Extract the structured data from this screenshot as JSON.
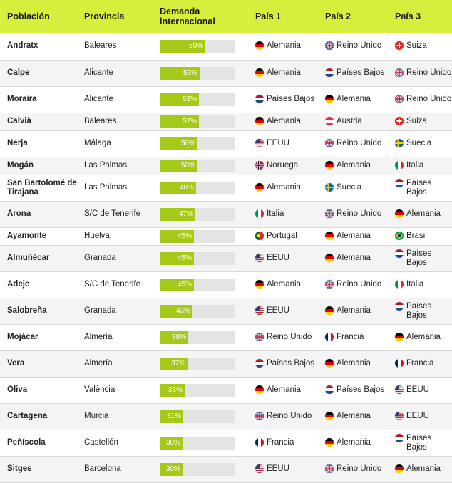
{
  "headers": {
    "poblacion": "Población",
    "provincia": "Provincia",
    "demanda_1": "Demanda",
    "demanda_2": "internacional",
    "pais1": "País 1",
    "pais2": "País 2",
    "pais3": "País 3"
  },
  "colors": {
    "header_bg": "#d7ef3c",
    "bar_fill": "#a5c918",
    "bar_track": "#e4e4e4",
    "row_alt": "#f4f4f4"
  },
  "chart_data": {
    "type": "table",
    "columns": [
      "Población",
      "Provincia",
      "Demanda internacional",
      "País 1",
      "País 2",
      "País 3"
    ],
    "rows": [
      {
        "poblacion": "Andratx",
        "provincia": "Baleares",
        "demanda": 60,
        "demanda_label": "60%",
        "p1": {
          "name": "Alemania",
          "flag": "germany-flag"
        },
        "p2": {
          "name": "Reino Unido",
          "flag": "uk-flag"
        },
        "p3": {
          "name": "Suiza",
          "flag": "switzerland-flag"
        }
      },
      {
        "poblacion": "Calpe",
        "provincia": "Alicante",
        "demanda": 53,
        "demanda_label": "53%",
        "p1": {
          "name": "Alemania",
          "flag": "germany-flag"
        },
        "p2": {
          "name": "Países Bajos",
          "flag": "netherlands-flag"
        },
        "p3": {
          "name": "Reino Unido",
          "flag": "uk-flag"
        }
      },
      {
        "poblacion": "Moraira",
        "provincia": "Alicante",
        "demanda": 52,
        "demanda_label": "52%",
        "p1": {
          "name": "Países Bajos",
          "flag": "netherlands-flag"
        },
        "p2": {
          "name": "Alemania",
          "flag": "germany-flag"
        },
        "p3": {
          "name": "Reino Unido",
          "flag": "uk-flag"
        }
      },
      {
        "poblacion": "Calvià",
        "provincia": "Baleares",
        "demanda": 52,
        "demanda_label": "52%",
        "p1": {
          "name": "Alemania",
          "flag": "germany-flag"
        },
        "p2": {
          "name": "Austria",
          "flag": "austria-flag"
        },
        "p3": {
          "name": "Suiza",
          "flag": "switzerland-flag"
        }
      },
      {
        "poblacion": "Nerja",
        "provincia": "Málaga",
        "demanda": 50,
        "demanda_label": "50%",
        "p1": {
          "name": "EEUU",
          "flag": "usa-flag"
        },
        "p2": {
          "name": "Reino Unido",
          "flag": "uk-flag"
        },
        "p3": {
          "name": "Suecia",
          "flag": "sweden-flag"
        }
      },
      {
        "poblacion": "Mogán",
        "provincia": "Las Palmas",
        "demanda": 50,
        "demanda_label": "50%",
        "p1": {
          "name": "Noruega",
          "flag": "norway-flag"
        },
        "p2": {
          "name": "Alemania",
          "flag": "germany-flag"
        },
        "p3": {
          "name": "Italia",
          "flag": "italy-flag"
        }
      },
      {
        "poblacion": "San Bartolomé de Tirajana",
        "provincia": "Las Palmas",
        "demanda": 48,
        "demanda_label": "48%",
        "p1": {
          "name": "Alemania",
          "flag": "germany-flag"
        },
        "p2": {
          "name": "Suecia",
          "flag": "sweden-flag"
        },
        "p3": {
          "name": "Países Bajos",
          "flag": "netherlands-flag"
        }
      },
      {
        "poblacion": "Arona",
        "provincia": "S/C de Tenerife",
        "demanda": 47,
        "demanda_label": "47%",
        "p1": {
          "name": "Italia",
          "flag": "italy-flag"
        },
        "p2": {
          "name": "Reino Unido",
          "flag": "uk-flag"
        },
        "p3": {
          "name": "Alemania",
          "flag": "germany-flag"
        }
      },
      {
        "poblacion": "Ayamonte",
        "provincia": "Huelva",
        "demanda": 45,
        "demanda_label": "45%",
        "p1": {
          "name": "Portugal",
          "flag": "portugal-flag"
        },
        "p2": {
          "name": "Alemania",
          "flag": "germany-flag"
        },
        "p3": {
          "name": "Brasil",
          "flag": "brazil-flag"
        }
      },
      {
        "poblacion": "Almuñécar",
        "provincia": "Granada",
        "demanda": 45,
        "demanda_label": "45%",
        "p1": {
          "name": "EEUU",
          "flag": "usa-flag"
        },
        "p2": {
          "name": "Alemania",
          "flag": "germany-flag"
        },
        "p3": {
          "name": "Países Bajos",
          "flag": "netherlands-flag"
        }
      },
      {
        "poblacion": "Adeje",
        "provincia": "S/C de Tenerife",
        "demanda": 45,
        "demanda_label": "45%",
        "p1": {
          "name": "Alemania",
          "flag": "germany-flag"
        },
        "p2": {
          "name": "Reino Unido",
          "flag": "uk-flag"
        },
        "p3": {
          "name": "Italia",
          "flag": "italy-flag"
        }
      },
      {
        "poblacion": "Salobreña",
        "provincia": "Granada",
        "demanda": 43,
        "demanda_label": "43%",
        "p1": {
          "name": "EEUU",
          "flag": "usa-flag"
        },
        "p2": {
          "name": "Alemania",
          "flag": "germany-flag"
        },
        "p3": {
          "name": "Países Bajos",
          "flag": "netherlands-flag"
        }
      },
      {
        "poblacion": "Mojácar",
        "provincia": "Almería",
        "demanda": 38,
        "demanda_label": "38%",
        "p1": {
          "name": "Reino Unido",
          "flag": "uk-flag"
        },
        "p2": {
          "name": "Francia",
          "flag": "france-flag"
        },
        "p3": {
          "name": "Alemania",
          "flag": "germany-flag"
        }
      },
      {
        "poblacion": "Vera",
        "provincia": "Almería",
        "demanda": 37,
        "demanda_label": "37%",
        "p1": {
          "name": "Países Bajos",
          "flag": "netherlands-flag"
        },
        "p2": {
          "name": "Alemania",
          "flag": "germany-flag"
        },
        "p3": {
          "name": "Francia",
          "flag": "france-flag"
        }
      },
      {
        "poblacion": "Oliva",
        "provincia": "València",
        "demanda": 33,
        "demanda_label": "33%",
        "p1": {
          "name": "Alemania",
          "flag": "germany-flag"
        },
        "p2": {
          "name": "Países Bajos",
          "flag": "netherlands-flag"
        },
        "p3": {
          "name": "EEUU",
          "flag": "usa-flag"
        }
      },
      {
        "poblacion": "Cartagena",
        "provincia": "Murcia",
        "demanda": 31,
        "demanda_label": "31%",
        "p1": {
          "name": "Reino Unido",
          "flag": "uk-flag"
        },
        "p2": {
          "name": "Alemania",
          "flag": "germany-flag"
        },
        "p3": {
          "name": "EEUU",
          "flag": "usa-flag"
        }
      },
      {
        "poblacion": "Peñíscola",
        "provincia": "Castellón",
        "demanda": 30,
        "demanda_label": "30%",
        "p1": {
          "name": "Francia",
          "flag": "france-flag"
        },
        "p2": {
          "name": "Alemania",
          "flag": "germany-flag"
        },
        "p3": {
          "name": "Países Bajos",
          "flag": "netherlands-flag"
        }
      },
      {
        "poblacion": "Sitges",
        "provincia": "Barcelona",
        "demanda": 30,
        "demanda_label": "30%",
        "p1": {
          "name": "EEUU",
          "flag": "usa-flag"
        },
        "p2": {
          "name": "Reino Unido",
          "flag": "uk-flag"
        },
        "p3": {
          "name": "Alemania",
          "flag": "germany-flag"
        }
      }
    ]
  }
}
